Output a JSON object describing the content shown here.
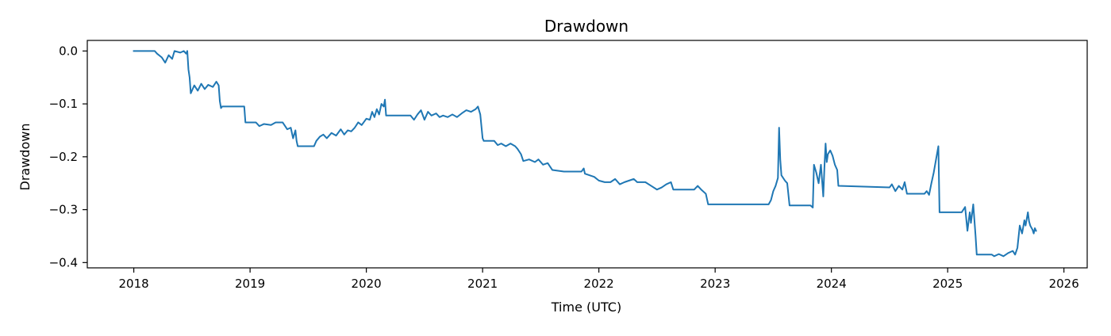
{
  "chart_data": {
    "type": "line",
    "title": "Drawdown",
    "xlabel": "Time (UTC)",
    "ylabel": "Drawdown",
    "xlim": [
      2017.6,
      2026.2
    ],
    "ylim": [
      -0.41,
      0.02
    ],
    "grid": false,
    "x_ticks": [
      2018,
      2019,
      2020,
      2021,
      2022,
      2023,
      2024,
      2025,
      2026
    ],
    "x_tick_labels": [
      "2018",
      "2019",
      "2020",
      "2021",
      "2022",
      "2023",
      "2024",
      "2025",
      "2026"
    ],
    "y_ticks": [
      0.0,
      -0.1,
      -0.2,
      -0.3,
      -0.4
    ],
    "y_tick_labels": [
      "0.0",
      "−0.1",
      "−0.2",
      "−0.3",
      "−0.4"
    ],
    "series": [
      {
        "color": "#1f77b4",
        "points": [
          [
            2018.0,
            0.0
          ],
          [
            2018.1,
            0.0
          ],
          [
            2018.18,
            0.0
          ],
          [
            2018.2,
            -0.005
          ],
          [
            2018.24,
            -0.012
          ],
          [
            2018.27,
            -0.022
          ],
          [
            2018.3,
            -0.008
          ],
          [
            2018.33,
            -0.015
          ],
          [
            2018.35,
            0.0
          ],
          [
            2018.4,
            -0.003
          ],
          [
            2018.43,
            0.0
          ],
          [
            2018.45,
            -0.005
          ],
          [
            2018.46,
            0.0
          ],
          [
            2018.47,
            -0.035
          ],
          [
            2018.48,
            -0.05
          ],
          [
            2018.49,
            -0.08
          ],
          [
            2018.52,
            -0.065
          ],
          [
            2018.55,
            -0.075
          ],
          [
            2018.58,
            -0.062
          ],
          [
            2018.61,
            -0.072
          ],
          [
            2018.64,
            -0.064
          ],
          [
            2018.68,
            -0.068
          ],
          [
            2018.71,
            -0.058
          ],
          [
            2018.73,
            -0.065
          ],
          [
            2018.74,
            -0.095
          ],
          [
            2018.75,
            -0.108
          ],
          [
            2018.76,
            -0.105
          ],
          [
            2018.95,
            -0.105
          ],
          [
            2018.96,
            -0.135
          ],
          [
            2019.05,
            -0.135
          ],
          [
            2019.08,
            -0.142
          ],
          [
            2019.12,
            -0.138
          ],
          [
            2019.18,
            -0.14
          ],
          [
            2019.22,
            -0.135
          ],
          [
            2019.28,
            -0.135
          ],
          [
            2019.32,
            -0.148
          ],
          [
            2019.35,
            -0.145
          ],
          [
            2019.37,
            -0.165
          ],
          [
            2019.39,
            -0.15
          ],
          [
            2019.4,
            -0.17
          ],
          [
            2019.41,
            -0.18
          ],
          [
            2019.55,
            -0.18
          ],
          [
            2019.57,
            -0.17
          ],
          [
            2019.6,
            -0.162
          ],
          [
            2019.63,
            -0.158
          ],
          [
            2019.66,
            -0.165
          ],
          [
            2019.7,
            -0.155
          ],
          [
            2019.74,
            -0.16
          ],
          [
            2019.78,
            -0.148
          ],
          [
            2019.81,
            -0.158
          ],
          [
            2019.84,
            -0.15
          ],
          [
            2019.87,
            -0.152
          ],
          [
            2019.9,
            -0.145
          ],
          [
            2019.93,
            -0.135
          ],
          [
            2019.96,
            -0.14
          ],
          [
            2020.0,
            -0.128
          ],
          [
            2020.03,
            -0.13
          ],
          [
            2020.05,
            -0.115
          ],
          [
            2020.07,
            -0.125
          ],
          [
            2020.09,
            -0.11
          ],
          [
            2020.11,
            -0.12
          ],
          [
            2020.13,
            -0.1
          ],
          [
            2020.15,
            -0.105
          ],
          [
            2020.16,
            -0.092
          ],
          [
            2020.17,
            -0.122
          ],
          [
            2020.38,
            -0.122
          ],
          [
            2020.41,
            -0.13
          ],
          [
            2020.44,
            -0.12
          ],
          [
            2020.47,
            -0.112
          ],
          [
            2020.5,
            -0.13
          ],
          [
            2020.53,
            -0.115
          ],
          [
            2020.56,
            -0.122
          ],
          [
            2020.6,
            -0.118
          ],
          [
            2020.63,
            -0.125
          ],
          [
            2020.66,
            -0.122
          ],
          [
            2020.7,
            -0.125
          ],
          [
            2020.74,
            -0.12
          ],
          [
            2020.78,
            -0.125
          ],
          [
            2020.82,
            -0.118
          ],
          [
            2020.86,
            -0.112
          ],
          [
            2020.9,
            -0.115
          ],
          [
            2020.94,
            -0.11
          ],
          [
            2020.96,
            -0.105
          ],
          [
            2020.98,
            -0.12
          ],
          [
            2021.0,
            -0.165
          ],
          [
            2021.01,
            -0.17
          ],
          [
            2021.1,
            -0.17
          ],
          [
            2021.13,
            -0.178
          ],
          [
            2021.16,
            -0.175
          ],
          [
            2021.2,
            -0.18
          ],
          [
            2021.24,
            -0.175
          ],
          [
            2021.28,
            -0.18
          ],
          [
            2021.3,
            -0.185
          ],
          [
            2021.33,
            -0.195
          ],
          [
            2021.35,
            -0.208
          ],
          [
            2021.4,
            -0.205
          ],
          [
            2021.45,
            -0.21
          ],
          [
            2021.48,
            -0.205
          ],
          [
            2021.52,
            -0.215
          ],
          [
            2021.56,
            -0.212
          ],
          [
            2021.6,
            -0.225
          ],
          [
            2021.7,
            -0.228
          ],
          [
            2021.8,
            -0.228
          ],
          [
            2021.85,
            -0.228
          ],
          [
            2021.87,
            -0.222
          ],
          [
            2021.88,
            -0.232
          ],
          [
            2021.92,
            -0.235
          ],
          [
            2021.96,
            -0.238
          ],
          [
            2022.0,
            -0.245
          ],
          [
            2022.05,
            -0.248
          ],
          [
            2022.1,
            -0.248
          ],
          [
            2022.14,
            -0.242
          ],
          [
            2022.18,
            -0.252
          ],
          [
            2022.22,
            -0.248
          ],
          [
            2022.26,
            -0.245
          ],
          [
            2022.3,
            -0.242
          ],
          [
            2022.33,
            -0.248
          ],
          [
            2022.36,
            -0.248
          ],
          [
            2022.4,
            -0.248
          ],
          [
            2022.45,
            -0.255
          ],
          [
            2022.5,
            -0.262
          ],
          [
            2022.54,
            -0.258
          ],
          [
            2022.58,
            -0.252
          ],
          [
            2022.62,
            -0.248
          ],
          [
            2022.64,
            -0.262
          ],
          [
            2022.7,
            -0.262
          ],
          [
            2022.82,
            -0.262
          ],
          [
            2022.85,
            -0.255
          ],
          [
            2022.88,
            -0.262
          ],
          [
            2022.92,
            -0.27
          ],
          [
            2022.94,
            -0.29
          ],
          [
            2023.4,
            -0.29
          ],
          [
            2023.46,
            -0.29
          ],
          [
            2023.48,
            -0.282
          ],
          [
            2023.5,
            -0.265
          ],
          [
            2023.52,
            -0.255
          ],
          [
            2023.54,
            -0.24
          ],
          [
            2023.55,
            -0.145
          ],
          [
            2023.56,
            -0.205
          ],
          [
            2023.57,
            -0.235
          ],
          [
            2023.6,
            -0.245
          ],
          [
            2023.62,
            -0.25
          ],
          [
            2023.64,
            -0.292
          ],
          [
            2023.82,
            -0.292
          ],
          [
            2023.84,
            -0.296
          ],
          [
            2023.85,
            -0.215
          ],
          [
            2023.87,
            -0.23
          ],
          [
            2023.89,
            -0.25
          ],
          [
            2023.91,
            -0.215
          ],
          [
            2023.93,
            -0.275
          ],
          [
            2023.94,
            -0.22
          ],
          [
            2023.95,
            -0.175
          ],
          [
            2023.96,
            -0.21
          ],
          [
            2023.97,
            -0.195
          ],
          [
            2023.99,
            -0.188
          ],
          [
            2024.01,
            -0.198
          ],
          [
            2024.03,
            -0.215
          ],
          [
            2024.05,
            -0.225
          ],
          [
            2024.06,
            -0.255
          ],
          [
            2024.5,
            -0.258
          ],
          [
            2024.52,
            -0.252
          ],
          [
            2024.55,
            -0.265
          ],
          [
            2024.58,
            -0.255
          ],
          [
            2024.61,
            -0.262
          ],
          [
            2024.63,
            -0.248
          ],
          [
            2024.65,
            -0.27
          ],
          [
            2024.7,
            -0.27
          ],
          [
            2024.8,
            -0.27
          ],
          [
            2024.82,
            -0.265
          ],
          [
            2024.84,
            -0.272
          ],
          [
            2024.86,
            -0.25
          ],
          [
            2024.88,
            -0.23
          ],
          [
            2024.9,
            -0.205
          ],
          [
            2024.92,
            -0.18
          ],
          [
            2024.93,
            -0.305
          ],
          [
            2025.05,
            -0.305
          ],
          [
            2025.12,
            -0.305
          ],
          [
            2025.15,
            -0.295
          ],
          [
            2025.17,
            -0.34
          ],
          [
            2025.19,
            -0.305
          ],
          [
            2025.2,
            -0.325
          ],
          [
            2025.22,
            -0.29
          ],
          [
            2025.24,
            -0.35
          ],
          [
            2025.25,
            -0.385
          ],
          [
            2025.38,
            -0.385
          ],
          [
            2025.4,
            -0.388
          ],
          [
            2025.44,
            -0.384
          ],
          [
            2025.48,
            -0.388
          ],
          [
            2025.52,
            -0.382
          ],
          [
            2025.56,
            -0.378
          ],
          [
            2025.58,
            -0.385
          ],
          [
            2025.6,
            -0.372
          ],
          [
            2025.62,
            -0.33
          ],
          [
            2025.64,
            -0.345
          ],
          [
            2025.66,
            -0.32
          ],
          [
            2025.67,
            -0.33
          ],
          [
            2025.69,
            -0.305
          ],
          [
            2025.7,
            -0.322
          ],
          [
            2025.71,
            -0.33
          ],
          [
            2025.73,
            -0.338
          ],
          [
            2025.74,
            -0.345
          ],
          [
            2025.75,
            -0.335
          ],
          [
            2025.76,
            -0.34
          ]
        ]
      }
    ]
  }
}
